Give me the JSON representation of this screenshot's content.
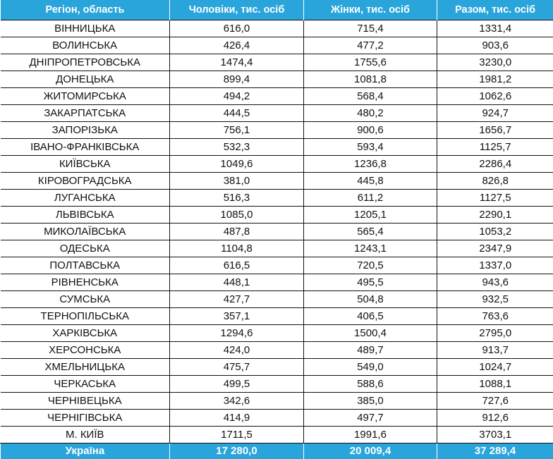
{
  "table": {
    "header_color": "#2aa5dc",
    "headers": [
      "Регіон, область",
      "Чоловіки, тис. осіб",
      "Жінки, тис. осіб",
      "Разом, тис. осіб"
    ],
    "rows": [
      [
        "ВІННИЦЬКА",
        "616,0",
        "715,4",
        "1331,4"
      ],
      [
        "ВОЛИНСЬКА",
        "426,4",
        "477,2",
        "903,6"
      ],
      [
        "ДНІПРОПЕТРОВСЬКА",
        "1474,4",
        "1755,6",
        "3230,0"
      ],
      [
        "ДОНЕЦЬКА",
        "899,4",
        "1081,8",
        "1981,2"
      ],
      [
        "ЖИТОМИРСЬКА",
        "494,2",
        "568,4",
        "1062,6"
      ],
      [
        "ЗАКАРПАТСЬКА",
        "444,5",
        "480,2",
        "924,7"
      ],
      [
        "ЗАПОРІЗЬКА",
        "756,1",
        "900,6",
        "1656,7"
      ],
      [
        "ІВАНО-ФРАНКІВСЬКА",
        "532,3",
        "593,4",
        "1125,7"
      ],
      [
        "КИЇВСЬКА",
        "1049,6",
        "1236,8",
        "2286,4"
      ],
      [
        "КІРОВОГРАДСЬКА",
        "381,0",
        "445,8",
        "826,8"
      ],
      [
        "ЛУГАНСЬКА",
        "516,3",
        "611,2",
        "1127,5"
      ],
      [
        "ЛЬВІВСЬКА",
        "1085,0",
        "1205,1",
        "2290,1"
      ],
      [
        "МИКОЛАЇВСЬКА",
        "487,8",
        "565,4",
        "1053,2"
      ],
      [
        "ОДЕСЬКА",
        "1104,8",
        "1243,1",
        "2347,9"
      ],
      [
        "ПОЛТАВСЬКА",
        "616,5",
        "720,5",
        "1337,0"
      ],
      [
        "РІВНЕНСЬКА",
        "448,1",
        "495,5",
        "943,6"
      ],
      [
        "СУМСЬКА",
        "427,7",
        "504,8",
        "932,5"
      ],
      [
        "ТЕРНОПІЛЬСЬКА",
        "357,1",
        "406,5",
        "763,6"
      ],
      [
        "ХАРКІВСЬКА",
        "1294,6",
        "1500,4",
        "2795,0"
      ],
      [
        "ХЕРСОНСЬКА",
        "424,0",
        "489,7",
        "913,7"
      ],
      [
        "ХМЕЛЬНИЦЬКА",
        "475,7",
        "549,0",
        "1024,7"
      ],
      [
        "ЧЕРКАСЬКА",
        "499,5",
        "588,6",
        "1088,1"
      ],
      [
        "ЧЕРНІВЕЦЬКА",
        "342,6",
        "385,0",
        "727,6"
      ],
      [
        "ЧЕРНІГІВСЬКА",
        "414,9",
        "497,7",
        "912,6"
      ],
      [
        "М. КИЇВ",
        "1711,5",
        "1991,6",
        "3703,1"
      ]
    ],
    "total": [
      "Україна",
      "17 280,0",
      "20 009,4",
      "37 289,4"
    ]
  }
}
